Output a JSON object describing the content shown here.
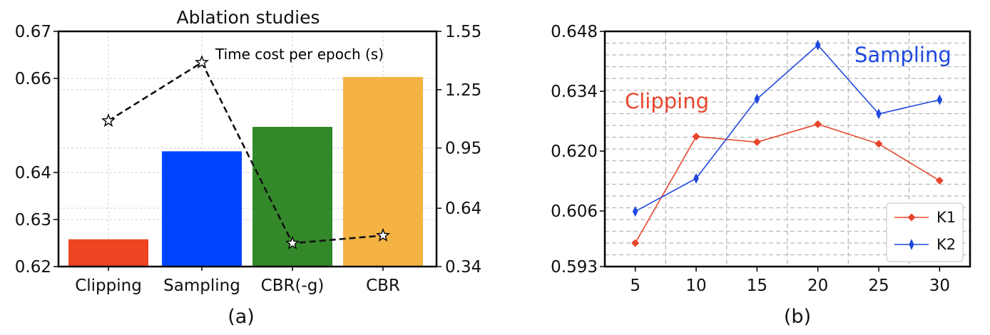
{
  "chart_data": [
    {
      "type": "bar",
      "title": "Ablation studies",
      "panel_label": "(a)",
      "categories": [
        "Clipping",
        "Sampling",
        "CBR(-g)",
        "CBR"
      ],
      "values": [
        0.6258,
        0.6445,
        0.6497,
        0.6603
      ],
      "bar_colors": [
        "#ee4422",
        "#0044ff",
        "#33882a",
        "#f4b342"
      ],
      "ylim": [
        0.62,
        0.67
      ],
      "yticks": [
        "0.62",
        "0.63",
        "0.64",
        "0.66",
        "0.67"
      ],
      "ytick_values": [
        0.62,
        0.63,
        0.64,
        0.66,
        0.67
      ],
      "grid": true,
      "secondary_axis": {
        "type": "line",
        "name": "Time cost per epoch (s)",
        "values": [
          1.09,
          1.39,
          0.46,
          0.5
        ],
        "ylim": [
          0.34,
          1.55
        ],
        "yticks": [
          "0.34",
          "0.64",
          "0.95",
          "1.25",
          "1.55"
        ],
        "ytick_values": [
          0.34,
          0.64,
          0.95,
          1.25,
          1.55
        ],
        "marker": "star",
        "style": "dashed",
        "color": "#111111"
      }
    },
    {
      "type": "line",
      "panel_label": "(b)",
      "x": [
        5,
        10,
        15,
        20,
        25,
        30
      ],
      "xticks": [
        "5",
        "10",
        "15",
        "20",
        "25",
        "30"
      ],
      "xlim": [
        2.5,
        32.5
      ],
      "ylim": [
        0.593,
        0.648
      ],
      "yticks": [
        "0.593",
        "0.606",
        "0.620",
        "0.634",
        "0.648"
      ],
      "ytick_values": [
        0.593,
        0.606,
        0.62,
        0.634,
        0.648
      ],
      "grid": true,
      "legend_position": "bottom-right",
      "series": [
        {
          "name": "K1",
          "values": [
            0.5985,
            0.6234,
            0.6221,
            0.6263,
            0.6217,
            0.6131
          ],
          "color": "#e8452c",
          "marker": "diamond"
        },
        {
          "name": "K2",
          "values": [
            0.6059,
            0.6136,
            0.6322,
            0.6448,
            0.6287,
            0.632
          ],
          "color": "#1f48e0",
          "marker": "thin-diamond"
        }
      ],
      "annotations": [
        {
          "text": "Clipping",
          "color": "#e8452c"
        },
        {
          "text": "Sampling",
          "color": "#1f48e0"
        }
      ]
    }
  ]
}
